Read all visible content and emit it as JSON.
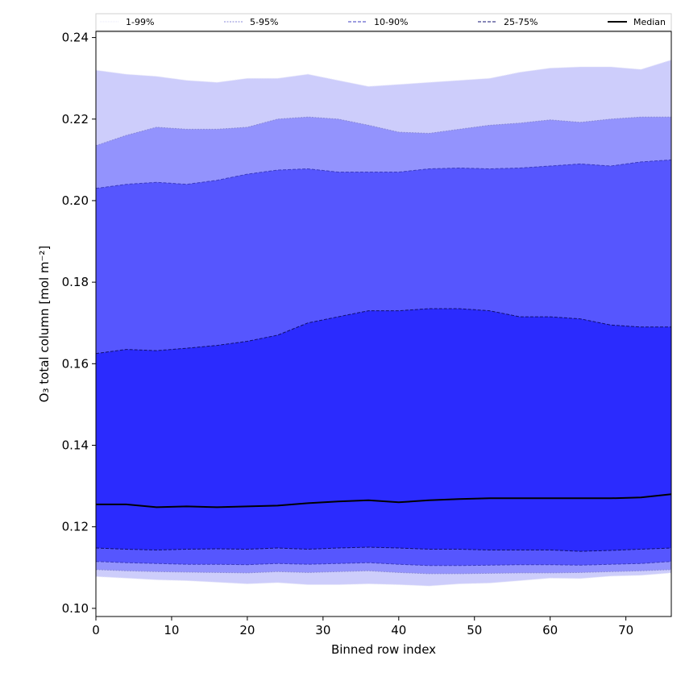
{
  "chart_data": {
    "type": "area",
    "title": "",
    "xlabel": "Binned row index",
    "ylabel": "O₃ total column [mol m⁻²]",
    "xlim": [
      0,
      76
    ],
    "ylim": [
      0.098,
      0.2415
    ],
    "xticks": [
      0,
      10,
      20,
      30,
      40,
      50,
      60,
      70
    ],
    "xtick_labels": [
      "0",
      "10",
      "20",
      "30",
      "40",
      "50",
      "60",
      "70"
    ],
    "yticks": [
      0.1,
      0.12,
      0.14,
      0.16,
      0.18,
      0.2,
      0.22,
      0.24
    ],
    "ytick_labels": [
      "0.10",
      "0.12",
      "0.14",
      "0.16",
      "0.18",
      "0.20",
      "0.22",
      "0.24"
    ],
    "x": [
      0,
      4,
      8,
      12,
      16,
      20,
      24,
      28,
      32,
      36,
      40,
      44,
      48,
      52,
      56,
      60,
      64,
      68,
      72,
      76
    ],
    "legend": {
      "placement": "top",
      "entries": [
        "1-99%",
        "5-95%",
        "10-90%",
        "25-75%",
        "Median"
      ]
    },
    "bands": [
      {
        "name": "1-99%",
        "fill": "#cdcdfb",
        "edge": "#e8e8f8",
        "dash": "1,1",
        "lower": [
          0.1078,
          0.1074,
          0.107,
          0.1068,
          0.1064,
          0.106,
          0.1063,
          0.1058,
          0.1058,
          0.106,
          0.1058,
          0.1055,
          0.106,
          0.1062,
          0.1068,
          0.1074,
          0.1073,
          0.1079,
          0.1081,
          0.1087
        ],
        "upper": [
          0.232,
          0.231,
          0.2305,
          0.2295,
          0.229,
          0.23,
          0.23,
          0.231,
          0.2295,
          0.228,
          0.2285,
          0.229,
          0.2295,
          0.23,
          0.2315,
          0.2325,
          0.2328,
          0.2328,
          0.2322,
          0.2345
        ]
      },
      {
        "name": "5-95%",
        "fill": "#9393fd",
        "edge": "#8a8ad8",
        "dash": "2,1.5",
        "lower": [
          0.1095,
          0.1092,
          0.109,
          0.1089,
          0.1088,
          0.1087,
          0.109,
          0.1088,
          0.109,
          0.1092,
          0.1088,
          0.1085,
          0.1085,
          0.1086,
          0.1087,
          0.1087,
          0.1088,
          0.109,
          0.1092,
          0.1095
        ],
        "upper": [
          0.2135,
          0.216,
          0.218,
          0.2175,
          0.2175,
          0.218,
          0.22,
          0.2205,
          0.22,
          0.2185,
          0.2168,
          0.2165,
          0.2175,
          0.2185,
          0.219,
          0.2198,
          0.2192,
          0.22,
          0.2205,
          0.2205
        ]
      },
      {
        "name": "10-90%",
        "fill": "#5656fe",
        "edge": "#3c3cc0",
        "dash": "4,2",
        "lower": [
          0.1115,
          0.1112,
          0.111,
          0.1108,
          0.1108,
          0.1107,
          0.111,
          0.1108,
          0.111,
          0.1112,
          0.1108,
          0.1105,
          0.1105,
          0.1106,
          0.1107,
          0.1107,
          0.1106,
          0.1108,
          0.111,
          0.1115
        ],
        "upper": [
          0.203,
          0.204,
          0.2045,
          0.204,
          0.205,
          0.2065,
          0.2075,
          0.2078,
          0.207,
          0.207,
          0.207,
          0.2078,
          0.208,
          0.2078,
          0.208,
          0.2085,
          0.209,
          0.2085,
          0.2095,
          0.21
        ]
      },
      {
        "name": "25-75%",
        "fill": "#2b2bfe",
        "edge": "#101070",
        "dash": "4,2",
        "lower": [
          0.1148,
          0.1145,
          0.1143,
          0.1145,
          0.1146,
          0.1145,
          0.1148,
          0.1145,
          0.1148,
          0.115,
          0.1148,
          0.1145,
          0.1145,
          0.1143,
          0.1143,
          0.1143,
          0.114,
          0.1142,
          0.1145,
          0.1148
        ],
        "upper": [
          0.1625,
          0.1635,
          0.1632,
          0.1638,
          0.1645,
          0.1655,
          0.167,
          0.17,
          0.1715,
          0.173,
          0.173,
          0.1735,
          0.1735,
          0.173,
          0.1715,
          0.1715,
          0.171,
          0.1695,
          0.169,
          0.169
        ]
      }
    ],
    "median": {
      "name": "Median",
      "color": "#000000",
      "values": [
        0.1255,
        0.1255,
        0.1248,
        0.125,
        0.1248,
        0.125,
        0.1252,
        0.1258,
        0.1262,
        0.1265,
        0.126,
        0.1265,
        0.1268,
        0.127,
        0.127,
        0.127,
        0.127,
        0.127,
        0.1272,
        0.128
      ]
    }
  }
}
